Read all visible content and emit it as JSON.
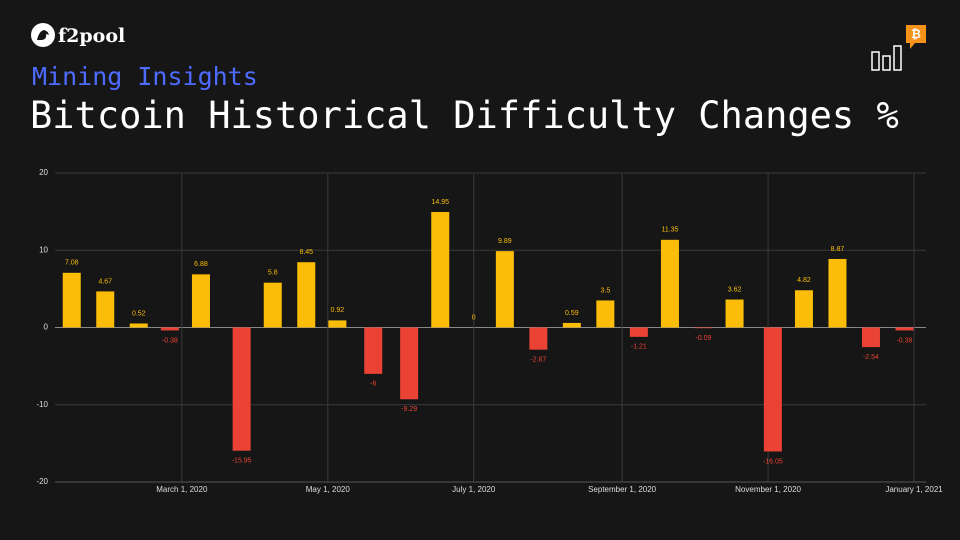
{
  "brand": "f2pool",
  "subtitle": "Mining Insights",
  "chart_data": {
    "type": "bar",
    "title": "Bitcoin Historical Difficulty Changes %",
    "x": [
      "2020-01-15",
      "2020-01-29",
      "2020-02-12",
      "2020-02-25",
      "2020-03-09",
      "2020-03-26",
      "2020-04-08",
      "2020-04-22",
      "2020-05-05",
      "2020-05-20",
      "2020-06-04",
      "2020-06-17",
      "2020-07-01",
      "2020-07-14",
      "2020-07-28",
      "2020-08-11",
      "2020-08-25",
      "2020-09-08",
      "2020-09-21",
      "2020-10-05",
      "2020-10-18",
      "2020-11-03",
      "2020-11-16",
      "2020-11-30",
      "2020-12-14",
      "2020-12-28"
    ],
    "values": [
      7.08,
      4.67,
      0.52,
      -0.38,
      6.88,
      -15.95,
      5.8,
      8.45,
      0.92,
      -6,
      -9.29,
      14.95,
      0,
      9.89,
      -2.87,
      0.59,
      3.5,
      -1.21,
      11.35,
      -0.09,
      3.62,
      -16.05,
      4.82,
      8.87,
      -2.54,
      -0.38
    ],
    "positive_color": "#fbbd08",
    "negative_color": "#ea4335",
    "xlim": [
      "2020-01-08",
      "2021-01-06"
    ],
    "xticks": [
      {
        "value": "2020-03-01",
        "label": "March 1, 2020"
      },
      {
        "value": "2020-05-01",
        "label": "May 1, 2020"
      },
      {
        "value": "2020-07-01",
        "label": "July 1, 2020"
      },
      {
        "value": "2020-09-01",
        "label": "September 1, 2020"
      },
      {
        "value": "2020-11-01",
        "label": "November 1, 2020"
      },
      {
        "value": "2021-01-01",
        "label": "January 1, 2021"
      }
    ],
    "ylim": [
      -20,
      20
    ],
    "yticks": [
      -20,
      -10,
      0,
      10,
      20
    ],
    "grid": true
  }
}
